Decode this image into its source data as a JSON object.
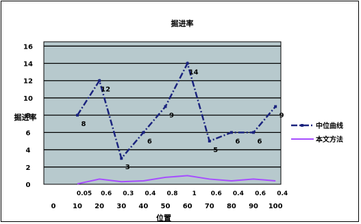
{
  "chart_data": {
    "type": "line",
    "title": "掘进率",
    "xlabel": "位置",
    "ylabel": "掘进率",
    "x_ticks": [
      "0",
      "10",
      "20",
      "30",
      "40",
      "50",
      "60",
      "70",
      "80",
      "90",
      "100"
    ],
    "y_ticks": [
      "0",
      "2",
      "4",
      "6",
      "8",
      "10",
      "12",
      "14",
      "16"
    ],
    "ylim": [
      0,
      16.5
    ],
    "grid": true,
    "legend_position": "right",
    "series": [
      {
        "name": "中位曲线",
        "color": "#1a237e",
        "style": "dash-dot",
        "x": [
          10,
          20,
          30,
          40,
          50,
          60,
          70,
          80,
          90,
          100
        ],
        "values": [
          8,
          12,
          3,
          6,
          9,
          14,
          5,
          6,
          6,
          9
        ],
        "labels": [
          "8",
          "12",
          "3",
          "6",
          "9",
          "14",
          "5",
          "6",
          "6",
          "9"
        ]
      },
      {
        "name": "本文方法",
        "color": "#a64dff",
        "style": "solid",
        "x": [
          10,
          20,
          30,
          40,
          50,
          60,
          70,
          80,
          90,
          100
        ],
        "values": [
          0.05,
          0.6,
          0.3,
          0.4,
          0.8,
          1,
          0.6,
          0.4,
          0.6,
          0.4
        ],
        "labels": [
          "0.05",
          "0.6",
          "0.3",
          "0.4",
          "0.8",
          "1",
          "0.6",
          "0.4",
          "0.6",
          "0.4"
        ]
      }
    ]
  },
  "colors": {
    "plot_background": "#b7c9cd",
    "grid": "#000000",
    "frame": "#000000"
  }
}
